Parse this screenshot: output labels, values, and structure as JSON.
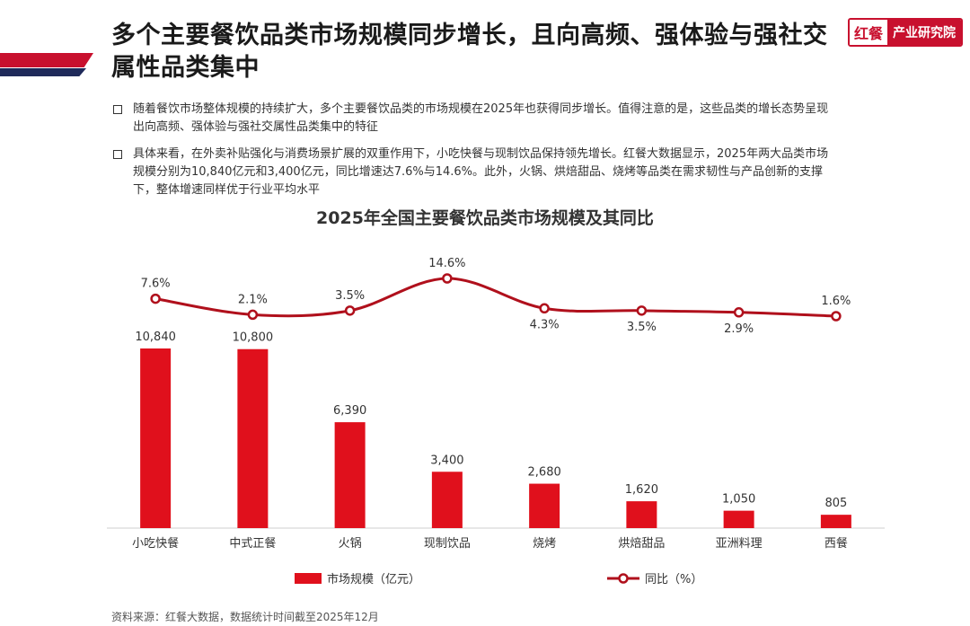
{
  "header": {
    "title": "多个主要餐饮品类市场规模同步增长，且向高频、强体验与强社交属性品类集中",
    "logo_part1": "红餐",
    "logo_part2": "产业研究院"
  },
  "bullets": [
    "随着餐饮市场整体规模的持续扩大，多个主要餐饮品类的市场规模在2025年也获得同步增长。值得注意的是，这些品类的增长态势呈现出向高频、强体验与强社交属性品类集中的特征",
    "具体来看，在外卖补贴强化与消费场景扩展的双重作用下，小吃快餐与现制饮品保持领先增长。红餐大数据显示，2025年两大品类市场规模分别为10,840亿元和3,400亿元，同比增速达7.6%与14.6%。此外，火锅、烘焙甜品、烧烤等品类在需求韧性与产品创新的支撑下，整体增速同样优于行业平均水平"
  ],
  "chart_data": {
    "type": "bar",
    "title": "2025年全国主要餐饮品类市场规模及其同比",
    "categories": [
      "小吃快餐",
      "中式正餐",
      "火锅",
      "现制饮品",
      "烧烤",
      "烘焙甜品",
      "亚洲料理",
      "西餐"
    ],
    "series": [
      {
        "name": "市场规模（亿元）",
        "type": "bar",
        "values": [
          10840,
          10800,
          6390,
          3400,
          2680,
          1620,
          1050,
          805
        ],
        "labels": [
          "10,840",
          "10,800",
          "6,390",
          "3,400",
          "2,680",
          "1,620",
          "1,050",
          "805"
        ],
        "color": "#e0101c"
      },
      {
        "name": "同比（%）",
        "type": "line",
        "values": [
          7.6,
          2.1,
          3.5,
          14.6,
          4.3,
          3.5,
          2.9,
          1.6
        ],
        "labels": [
          "7.6%",
          "2.1%",
          "3.5%",
          "14.6%",
          "4.3%",
          "3.5%",
          "2.9%",
          "1.6%"
        ],
        "color": "#b0101c"
      }
    ],
    "legend": "bottom",
    "grid": false
  },
  "footer": {
    "source": "资料来源：红餐大数据，数据统计时间截至2025年12月"
  }
}
